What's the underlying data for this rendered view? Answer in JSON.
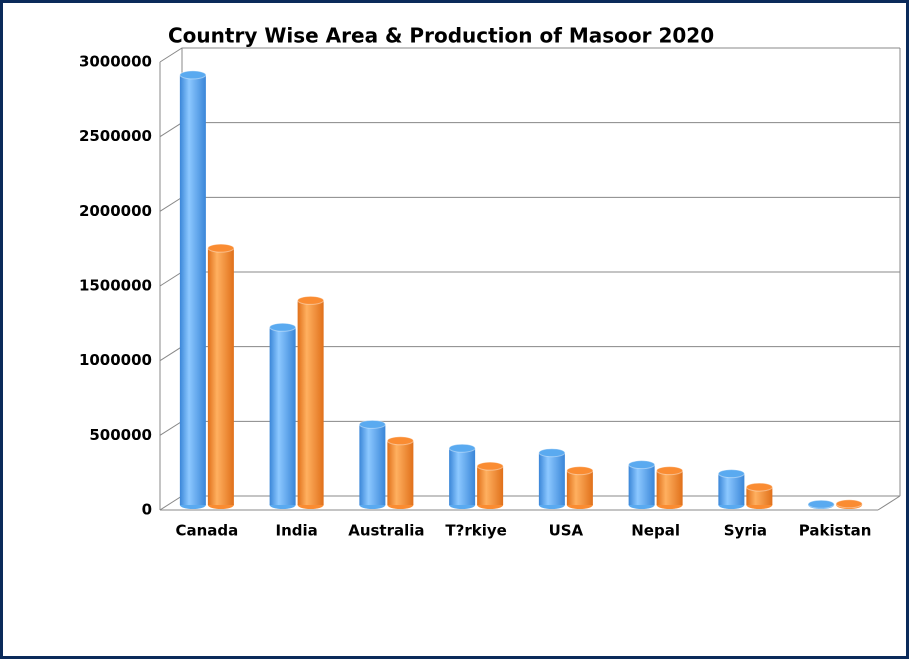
{
  "chart_data": {
    "type": "bar",
    "title": "Country Wise Area & Production of Masoor 2020",
    "categories": [
      "Canada",
      "India",
      "Australia",
      "T?rkiye",
      "USA",
      "Nepal",
      "Syria",
      "Pakistan"
    ],
    "series": [
      {
        "color": "#5aaaf0",
        "values": [
          2880000,
          1190000,
          540000,
          380000,
          350000,
          270000,
          210000,
          5000
        ]
      },
      {
        "color": "#fa8c32",
        "values": [
          1720000,
          1370000,
          430000,
          260000,
          230000,
          230000,
          120000,
          8000
        ]
      }
    ],
    "ylim": [
      0,
      3000000
    ],
    "yticks": [
      0,
      500000,
      1000000,
      1500000,
      2000000,
      2500000,
      3000000
    ],
    "grid": true
  }
}
